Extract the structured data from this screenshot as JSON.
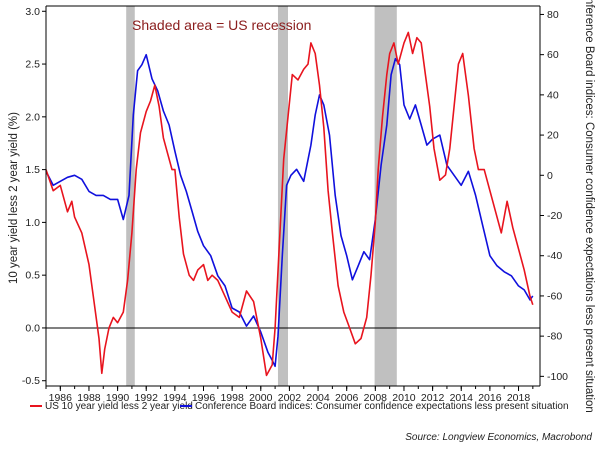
{
  "chart_data": {
    "type": "line",
    "annotation": "Shaded area = US recession",
    "left_axis": {
      "label": "10 year yield less 2 year yield (%)",
      "ylim": [
        -0.55,
        3.05
      ],
      "ticks": [
        -0.5,
        0.0,
        0.5,
        1.0,
        1.5,
        2.0,
        2.5,
        3.0
      ],
      "tick_labels": [
        "-0.5",
        "0.0",
        "0.5",
        "1.0",
        "1.5",
        "2.0",
        "2.5",
        "3.0"
      ]
    },
    "right_axis": {
      "label": "Conference Board indices: Consumer confidence expectations less present situation",
      "ylim": [
        -104.8,
        84.2
      ],
      "ticks": [
        -100,
        -80,
        -60,
        -40,
        -20,
        0,
        20,
        40,
        60,
        80
      ],
      "tick_labels": [
        "-100",
        "-80",
        "-60",
        "-40",
        "-20",
        "0",
        "20",
        "40",
        "60",
        "80"
      ]
    },
    "x_axis": {
      "xlim": [
        1985.0,
        2019.5
      ],
      "ticks": [
        1986,
        1988,
        1990,
        1992,
        1994,
        1996,
        1998,
        2000,
        2002,
        2004,
        2006,
        2008,
        2010,
        2012,
        2014,
        2016,
        2018
      ],
      "tick_labels": [
        "1986",
        "1988",
        "1990",
        "1992",
        "1994",
        "1996",
        "1998",
        "2000",
        "2002",
        "2004",
        "2006",
        "2008",
        "2010",
        "2012",
        "2014",
        "2016",
        "2018"
      ]
    },
    "recessions": [
      {
        "start": 1990.6,
        "end": 1991.2
      },
      {
        "start": 2001.2,
        "end": 2001.9
      },
      {
        "start": 2007.95,
        "end": 2009.5
      }
    ],
    "zero_line": 0.0,
    "series": [
      {
        "name": "US 10 year yield less 2 year yield",
        "axis": "left",
        "color": "#e8141e",
        "x": [
          1985.0,
          1985.5,
          1986.0,
          1986.5,
          1986.8,
          1987.0,
          1987.5,
          1988.0,
          1988.3,
          1988.7,
          1988.9,
          1989.1,
          1989.4,
          1989.7,
          1990.0,
          1990.4,
          1990.7,
          1991.0,
          1991.3,
          1991.6,
          1992.0,
          1992.3,
          1992.6,
          1992.9,
          1993.2,
          1993.5,
          1993.8,
          1994.0,
          1994.3,
          1994.6,
          1995.0,
          1995.3,
          1995.6,
          1996.0,
          1996.3,
          1996.6,
          1997.0,
          1997.5,
          1998.0,
          1998.5,
          1999.0,
          1999.5,
          2000.0,
          2000.4,
          2000.8,
          2001.0,
          2001.3,
          2001.6,
          2001.9,
          2002.2,
          2002.6,
          2003.0,
          2003.3,
          2003.5,
          2003.8,
          2004.1,
          2004.4,
          2004.7,
          2005.0,
          2005.4,
          2005.8,
          2006.2,
          2006.6,
          2007.0,
          2007.4,
          2007.7,
          2008.0,
          2008.2,
          2008.5,
          2008.8,
          2009.0,
          2009.3,
          2009.6,
          2010.0,
          2010.3,
          2010.6,
          2010.9,
          2011.2,
          2011.5,
          2011.8,
          2012.1,
          2012.5,
          2012.9,
          2013.2,
          2013.5,
          2013.8,
          2014.1,
          2014.5,
          2014.9,
          2015.2,
          2015.6,
          2016.0,
          2016.4,
          2016.8,
          2017.2,
          2017.6,
          2018.0,
          2018.4,
          2018.8,
          2019.0
        ],
        "values": [
          1.5,
          1.3,
          1.35,
          1.1,
          1.2,
          1.05,
          0.9,
          0.6,
          0.3,
          -0.1,
          -0.43,
          -0.2,
          0.0,
          0.1,
          0.05,
          0.15,
          0.45,
          0.9,
          1.5,
          1.85,
          2.05,
          2.15,
          2.3,
          2.1,
          1.8,
          1.65,
          1.5,
          1.5,
          1.05,
          0.7,
          0.5,
          0.45,
          0.55,
          0.6,
          0.45,
          0.5,
          0.45,
          0.3,
          0.15,
          0.1,
          0.35,
          0.25,
          -0.1,
          -0.45,
          -0.35,
          0.0,
          0.8,
          1.6,
          2.0,
          2.4,
          2.35,
          2.45,
          2.5,
          2.7,
          2.6,
          2.3,
          1.9,
          1.3,
          0.9,
          0.4,
          0.15,
          0.0,
          -0.15,
          -0.1,
          0.1,
          0.5,
          1.0,
          1.5,
          2.0,
          2.4,
          2.6,
          2.7,
          2.5,
          2.7,
          2.8,
          2.6,
          2.75,
          2.7,
          2.4,
          2.1,
          1.7,
          1.4,
          1.45,
          1.7,
          2.1,
          2.5,
          2.6,
          2.2,
          1.7,
          1.5,
          1.5,
          1.3,
          1.1,
          0.9,
          1.2,
          0.95,
          0.75,
          0.55,
          0.3,
          0.22
        ]
      },
      {
        "name": "Conference Board indices: Consumer confidence expectations less present situation",
        "axis": "right",
        "color": "#1010dd",
        "x": [
          1985.0,
          1985.5,
          1986.0,
          1986.5,
          1987.0,
          1987.5,
          1988.0,
          1988.5,
          1989.0,
          1989.5,
          1990.0,
          1990.4,
          1990.8,
          1991.1,
          1991.4,
          1991.7,
          1992.0,
          1992.4,
          1992.8,
          1993.2,
          1993.6,
          1994.0,
          1994.4,
          1994.8,
          1995.2,
          1995.6,
          1996.0,
          1996.5,
          1997.0,
          1997.5,
          1998.0,
          1998.5,
          1999.0,
          1999.5,
          2000.0,
          2000.5,
          2000.8,
          2001.0,
          2001.2,
          2001.5,
          2001.8,
          2002.1,
          2002.5,
          2003.0,
          2003.5,
          2003.8,
          2004.1,
          2004.4,
          2004.8,
          2005.2,
          2005.6,
          2006.0,
          2006.4,
          2006.8,
          2007.2,
          2007.6,
          2008.0,
          2008.4,
          2008.8,
          2009.1,
          2009.4,
          2009.7,
          2010.0,
          2010.4,
          2010.8,
          2011.2,
          2011.6,
          2012.0,
          2012.5,
          2013.0,
          2013.5,
          2014.0,
          2014.5,
          2015.0,
          2015.5,
          2016.0,
          2016.5,
          2017.0,
          2017.5,
          2018.0,
          2018.4,
          2018.8,
          2019.0
        ],
        "values": [
          2,
          -5,
          -3,
          -1,
          0,
          -2,
          -8,
          -10,
          -10,
          -12,
          -12,
          -22,
          -10,
          30,
          52,
          55,
          60,
          48,
          42,
          32,
          25,
          12,
          0,
          -8,
          -18,
          -28,
          -35,
          -40,
          -50,
          -55,
          -66,
          -68,
          -75,
          -70,
          -78,
          -88,
          -92,
          -95,
          -80,
          -40,
          -5,
          0,
          3,
          -3,
          15,
          30,
          40,
          35,
          20,
          -10,
          -30,
          -40,
          -52,
          -45,
          -38,
          -42,
          -22,
          5,
          25,
          50,
          58,
          55,
          35,
          28,
          35,
          25,
          15,
          18,
          20,
          5,
          0,
          -5,
          2,
          -10,
          -25,
          -40,
          -45,
          -48,
          -50,
          -55,
          -57,
          -62,
          -60
        ]
      }
    ],
    "legend": {
      "position": "bottom",
      "entries": [
        {
          "label": "US 10 year yield less 2 year yield",
          "color": "#e8141e"
        },
        {
          "label": "Conference Board indices: Consumer confidence expectations less present situation",
          "color": "#1010dd"
        }
      ]
    },
    "source": "Source: Longview Economics, Macrobond",
    "colors": {
      "recession": "#c0c0c0",
      "zero_line": "#000000",
      "axis": "#000000"
    }
  }
}
